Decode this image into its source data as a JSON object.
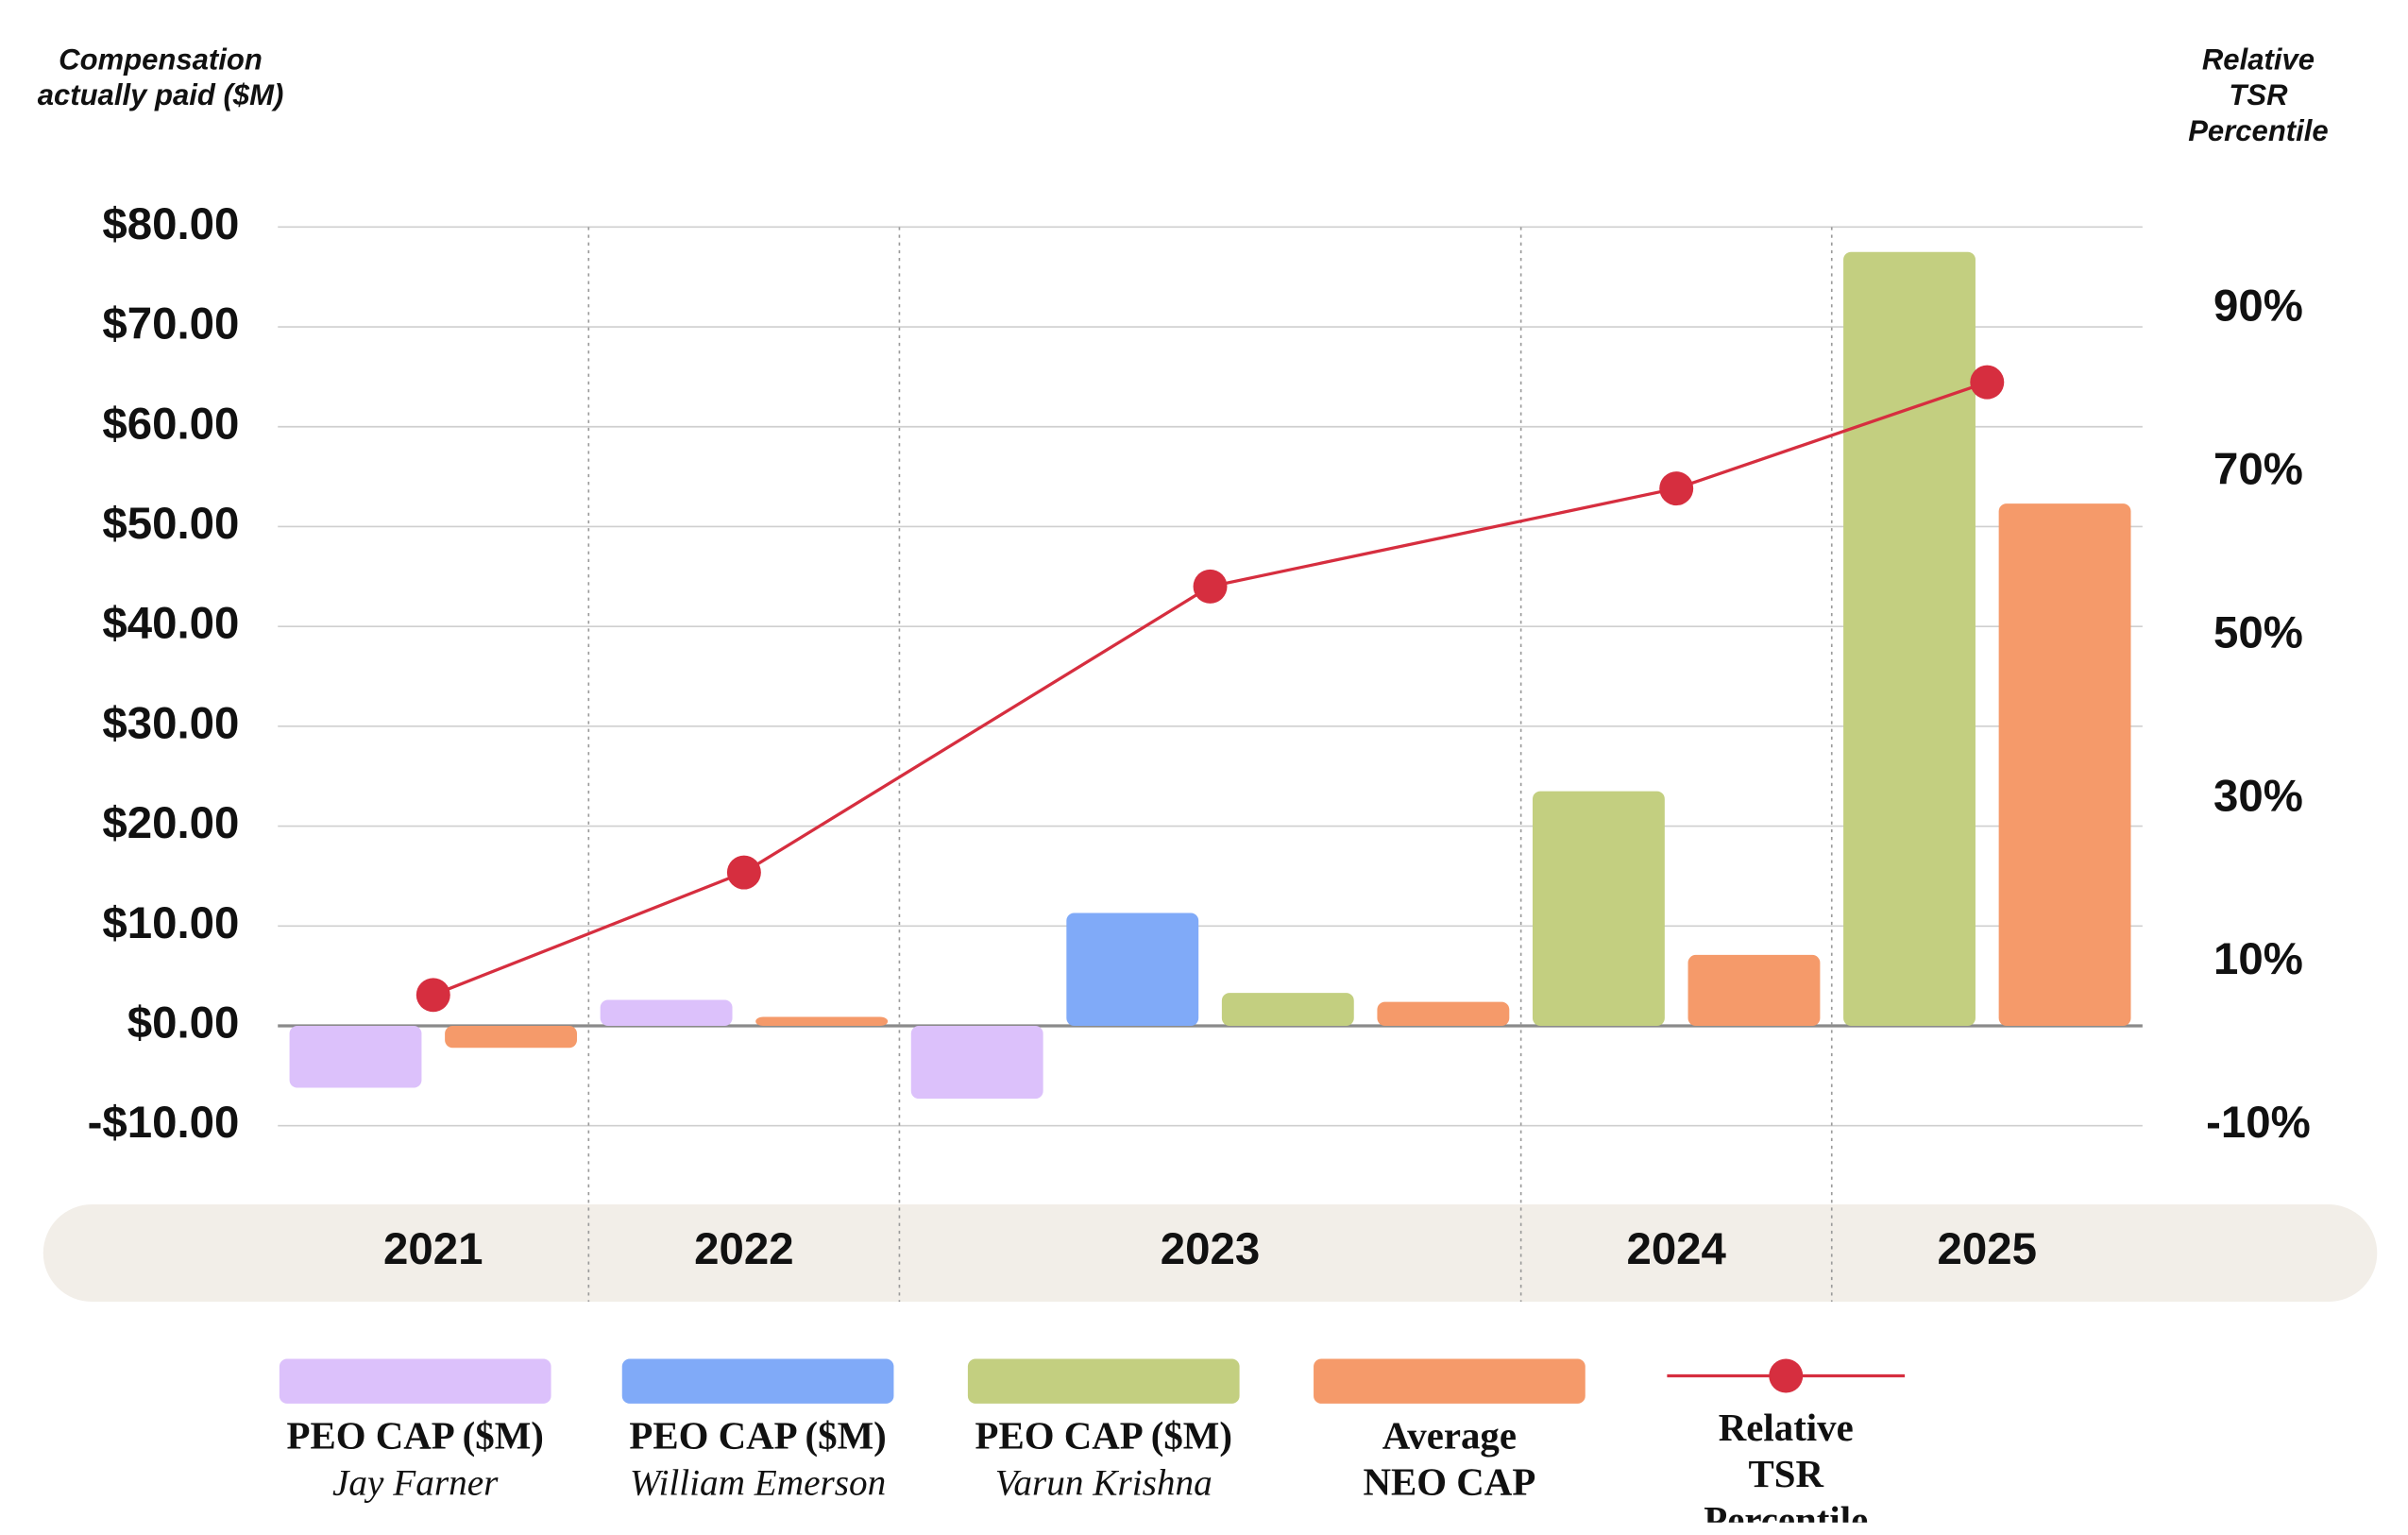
{
  "chart_data": {
    "type": "bar",
    "y_label": "Compensation actually paid ($M)",
    "y2_label": "Relative TSR Percentile",
    "categories": [
      "2021",
      "2022",
      "2023",
      "2024",
      "2025"
    ],
    "series": [
      {
        "name": "PEO CAP ($M)",
        "subtitle": "Jay Farner",
        "color": "#dcc1fb",
        "values": [
          -6.2,
          2.6,
          -7.3,
          null,
          null
        ]
      },
      {
        "name": "PEO CAP ($M)",
        "subtitle": "William Emerson",
        "color": "#80aaf8",
        "values": [
          null,
          null,
          11.3,
          null,
          null
        ]
      },
      {
        "name": "PEO CAP ($M)",
        "subtitle": "Varun Krishna",
        "color": "#c3cf80",
        "values": [
          null,
          null,
          3.3,
          23.5,
          77.5
        ]
      },
      {
        "name": "Average NEO CAP",
        "color": "#f59a6a",
        "values": [
          -2.2,
          0.9,
          2.4,
          7.1,
          52.3
        ]
      },
      {
        "name": "Relative TSR Percentile",
        "type": "line",
        "axis": "y2",
        "color": "#d62e3f",
        "values": [
          6,
          21,
          56,
          68,
          81
        ]
      }
    ],
    "ylim": [
      -10,
      80
    ],
    "yticks": [
      {
        "value": -10,
        "label": "-$10.00"
      },
      {
        "value": 0,
        "label": "$0.00"
      },
      {
        "value": 10,
        "label": "$10.00"
      },
      {
        "value": 20,
        "label": "$20.00"
      },
      {
        "value": 30,
        "label": "$30.00"
      },
      {
        "value": 40,
        "label": "$40.00"
      },
      {
        "value": 50,
        "label": "$50.00"
      },
      {
        "value": 60,
        "label": "$60.00"
      },
      {
        "value": 70,
        "label": "$70.00"
      },
      {
        "value": 80,
        "label": "$80.00"
      }
    ],
    "y2lim": [
      -10,
      100
    ],
    "y2ticks": [
      {
        "value": -10,
        "label": "-10%"
      },
      {
        "value": 10,
        "label": "10%"
      },
      {
        "value": 30,
        "label": "30%"
      },
      {
        "value": 50,
        "label": "50%"
      },
      {
        "value": 70,
        "label": "70%"
      },
      {
        "value": 90,
        "label": "90%"
      }
    ],
    "grid": true
  }
}
